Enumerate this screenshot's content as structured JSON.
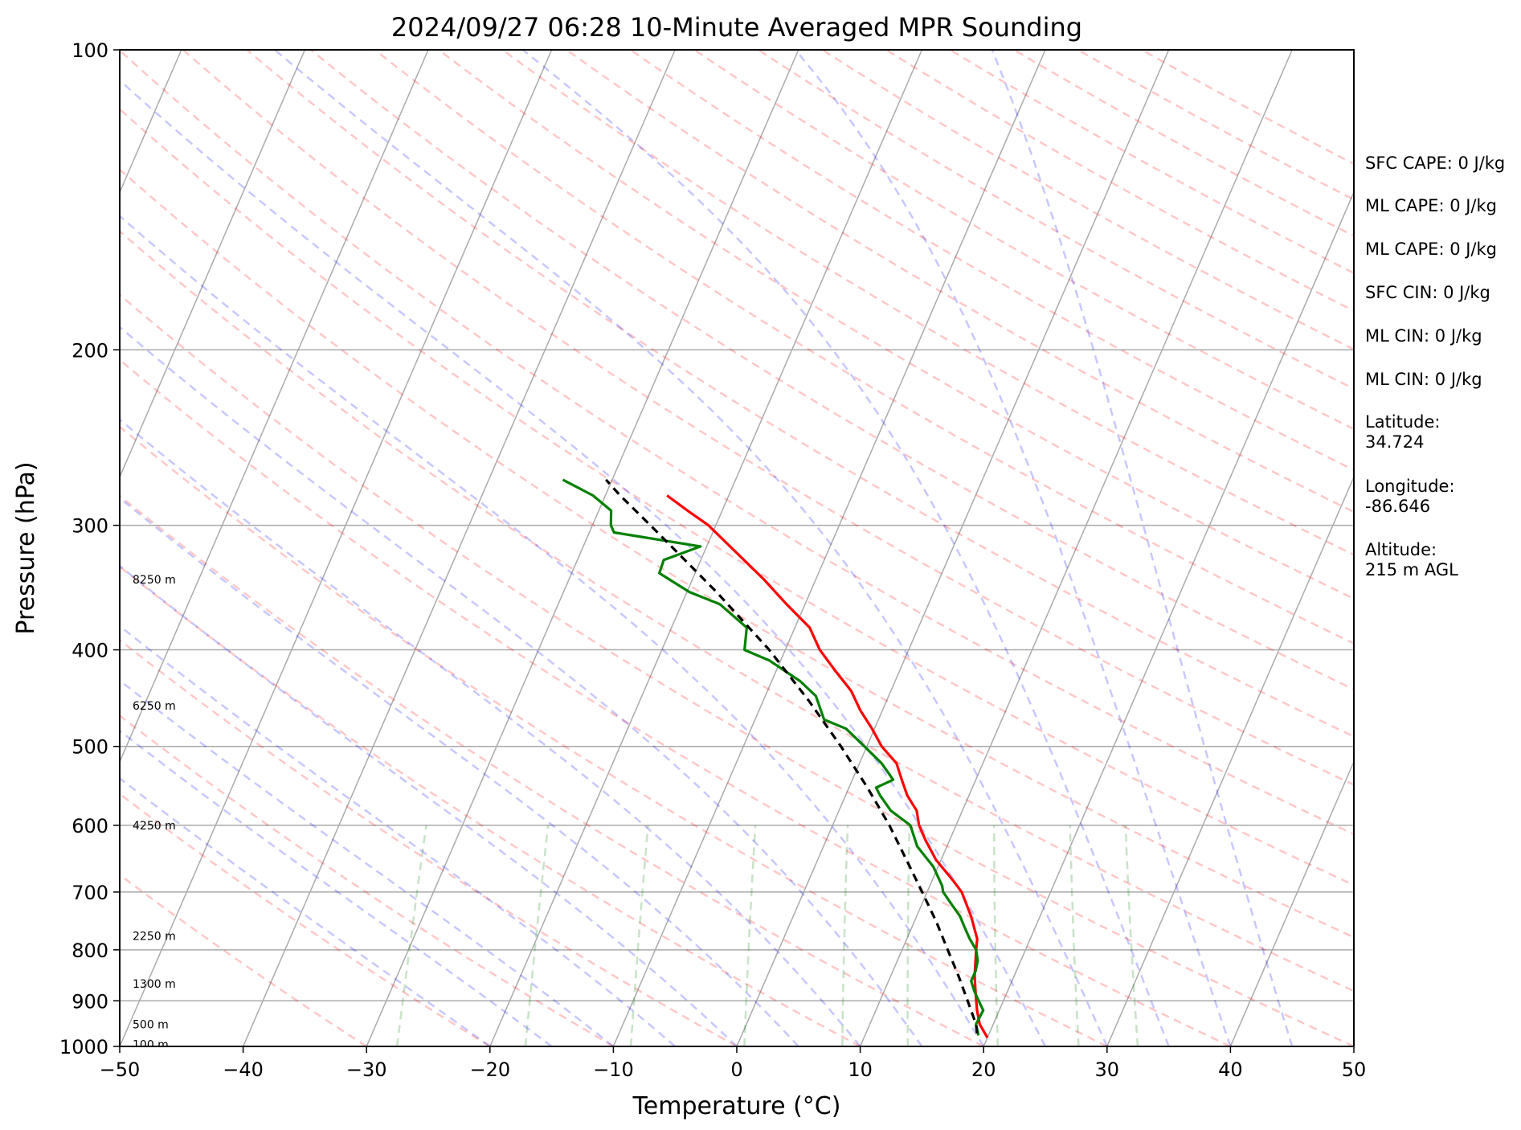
{
  "chart_data": {
    "type": "line",
    "title": "2024/09/27 06:28 10-Minute Averaged MPR Sounding",
    "xlabel": "Temperature (°C)",
    "ylabel": "Pressure (hPa)",
    "xlim": [
      -50,
      50
    ],
    "ylim": [
      1000,
      100
    ],
    "y_scale": "log",
    "skew": true,
    "grid": true,
    "x_ticks": [
      "−50",
      "−40",
      "−30",
      "−20",
      "−10",
      "0",
      "10",
      "20",
      "30",
      "40",
      "50"
    ],
    "y_ticks": [
      "100",
      "200",
      "300",
      "400",
      "500",
      "600",
      "700",
      "800",
      "900",
      "1000"
    ],
    "height_labels": [
      {
        "text": "100 m",
        "p": 995
      },
      {
        "text": "500 m",
        "p": 950
      },
      {
        "text": "1300 m",
        "p": 865
      },
      {
        "text": "2250 m",
        "p": 775
      },
      {
        "text": "4250 m",
        "p": 600
      },
      {
        "text": "6250 m",
        "p": 455
      },
      {
        "text": "8250 m",
        "p": 340
      }
    ],
    "series": [
      {
        "key": "temperature",
        "color": "#ff0000",
        "points": [
          [
            980,
            20.0
          ],
          [
            950,
            18.9
          ],
          [
            920,
            18.2
          ],
          [
            900,
            17.8
          ],
          [
            880,
            17.4
          ],
          [
            850,
            16.8
          ],
          [
            800,
            16.0
          ],
          [
            780,
            15.7
          ],
          [
            740,
            14.4
          ],
          [
            700,
            12.8
          ],
          [
            680,
            11.6
          ],
          [
            650,
            9.6
          ],
          [
            620,
            8.0
          ],
          [
            600,
            7.0
          ],
          [
            580,
            6.3
          ],
          [
            560,
            5.0
          ],
          [
            540,
            4.0
          ],
          [
            520,
            3.0
          ],
          [
            500,
            1.2
          ],
          [
            480,
            -0.2
          ],
          [
            460,
            -1.8
          ],
          [
            440,
            -3.2
          ],
          [
            420,
            -5.2
          ],
          [
            400,
            -7.2
          ],
          [
            380,
            -8.8
          ],
          [
            360,
            -11.5
          ],
          [
            340,
            -14.2
          ],
          [
            320,
            -17.3
          ],
          [
            300,
            -20.6
          ],
          [
            290,
            -22.8
          ],
          [
            280,
            -25.0
          ]
        ]
      },
      {
        "key": "dewpoint",
        "color": "#008000",
        "points": [
          [
            975,
            19.2
          ],
          [
            950,
            18.6
          ],
          [
            920,
            18.7
          ],
          [
            900,
            18.0
          ],
          [
            880,
            17.3
          ],
          [
            860,
            16.7
          ],
          [
            840,
            16.7
          ],
          [
            820,
            16.5
          ],
          [
            800,
            16.0
          ],
          [
            780,
            15.1
          ],
          [
            760,
            14.3
          ],
          [
            740,
            13.5
          ],
          [
            720,
            12.4
          ],
          [
            700,
            11.3
          ],
          [
            690,
            11.0
          ],
          [
            660,
            9.6
          ],
          [
            630,
            7.6
          ],
          [
            600,
            6.3
          ],
          [
            580,
            4.2
          ],
          [
            560,
            2.8
          ],
          [
            550,
            2.2
          ],
          [
            540,
            3.3
          ],
          [
            520,
            1.8
          ],
          [
            500,
            -0.2
          ],
          [
            480,
            -2.3
          ],
          [
            470,
            -4.4
          ],
          [
            445,
            -5.9
          ],
          [
            430,
            -7.7
          ],
          [
            410,
            -10.9
          ],
          [
            400,
            -13.3
          ],
          [
            380,
            -13.9
          ],
          [
            360,
            -16.9
          ],
          [
            350,
            -19.8
          ],
          [
            335,
            -22.9
          ],
          [
            325,
            -23.0
          ],
          [
            315,
            -20.5
          ],
          [
            305,
            -28.0
          ],
          [
            300,
            -28.5
          ],
          [
            290,
            -29.0
          ],
          [
            280,
            -31.0
          ],
          [
            270,
            -34.0
          ]
        ]
      },
      {
        "key": "parcel",
        "color": "#000000",
        "points": [
          [
            970,
            19.0
          ],
          [
            950,
            18.6
          ],
          [
            900,
            17.1
          ],
          [
            850,
            15.5
          ],
          [
            800,
            13.7
          ],
          [
            750,
            11.8
          ],
          [
            700,
            9.6
          ],
          [
            650,
            7.2
          ],
          [
            600,
            4.6
          ],
          [
            550,
            1.5
          ],
          [
            500,
            -2.1
          ],
          [
            450,
            -6.3
          ],
          [
            400,
            -11.3
          ],
          [
            350,
            -17.6
          ],
          [
            300,
            -25.3
          ],
          [
            280,
            -28.8
          ],
          [
            270,
            -30.5
          ]
        ]
      }
    ]
  },
  "info_panel": [
    {
      "text": "SFC CAPE: 0 J/kg"
    },
    {
      "text": "ML CAPE: 0 J/kg"
    },
    {
      "text": "ML CAPE: 0 J/kg"
    },
    {
      "text": "SFC CIN: 0 J/kg"
    },
    {
      "text": "ML CIN: 0 J/kg"
    },
    {
      "text": "ML CIN: 0 J/kg"
    },
    {
      "text": "Latitude:\n34.724"
    },
    {
      "text": "Longitude:\n-86.646"
    },
    {
      "text": "Altitude:\n215 m AGL"
    }
  ]
}
